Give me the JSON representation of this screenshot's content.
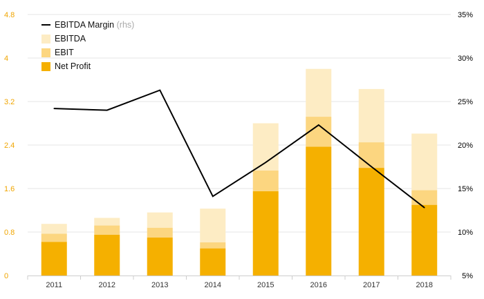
{
  "chart_data": {
    "type": "bar",
    "categories": [
      "2011",
      "2012",
      "2013",
      "2014",
      "2015",
      "2016",
      "2017",
      "2018"
    ],
    "series": [
      {
        "name": "Net Profit",
        "kind": "stacked-bar",
        "axis": "left",
        "color": "#f5b000",
        "values": [
          0.62,
          0.75,
          0.7,
          0.5,
          1.55,
          2.37,
          1.98,
          1.3
        ]
      },
      {
        "name": "EBIT",
        "kind": "stacked-bar",
        "axis": "left",
        "color": "#fcd680",
        "values": [
          0.15,
          0.17,
          0.18,
          0.11,
          0.38,
          0.55,
          0.47,
          0.27
        ]
      },
      {
        "name": "EBITDA",
        "kind": "stacked-bar",
        "axis": "left",
        "color": "#fdecc4",
        "values": [
          0.18,
          0.14,
          0.28,
          0.62,
          0.87,
          0.88,
          0.98,
          1.04
        ]
      },
      {
        "name": "EBITDA Margin",
        "note": "(rhs)",
        "kind": "line",
        "axis": "right",
        "color": "#000000",
        "values": [
          24.2,
          24.0,
          26.3,
          14.1,
          18.0,
          22.3,
          17.5,
          12.8
        ]
      }
    ],
    "yleft": {
      "ticks": [
        "0",
        "0.8",
        "1.6",
        "2.4",
        "3.2",
        "4",
        "4.8"
      ],
      "values": [
        0,
        0.8,
        1.6,
        2.4,
        3.2,
        4.0,
        4.8
      ],
      "lim": [
        0,
        4.8
      ],
      "color": "#f0a500"
    },
    "yright": {
      "ticks": [
        "5%",
        "10%",
        "15%",
        "20%",
        "25%",
        "30%",
        "35%"
      ],
      "values": [
        5,
        10,
        15,
        20,
        25,
        30,
        35
      ],
      "lim": [
        5,
        35
      ],
      "color": "#000000"
    },
    "legend_order": [
      "EBITDA Margin",
      "EBITDA",
      "EBIT",
      "Net Profit"
    ],
    "legend_position": "top-left",
    "grid": true,
    "grid_color": "#e6e6e6"
  }
}
